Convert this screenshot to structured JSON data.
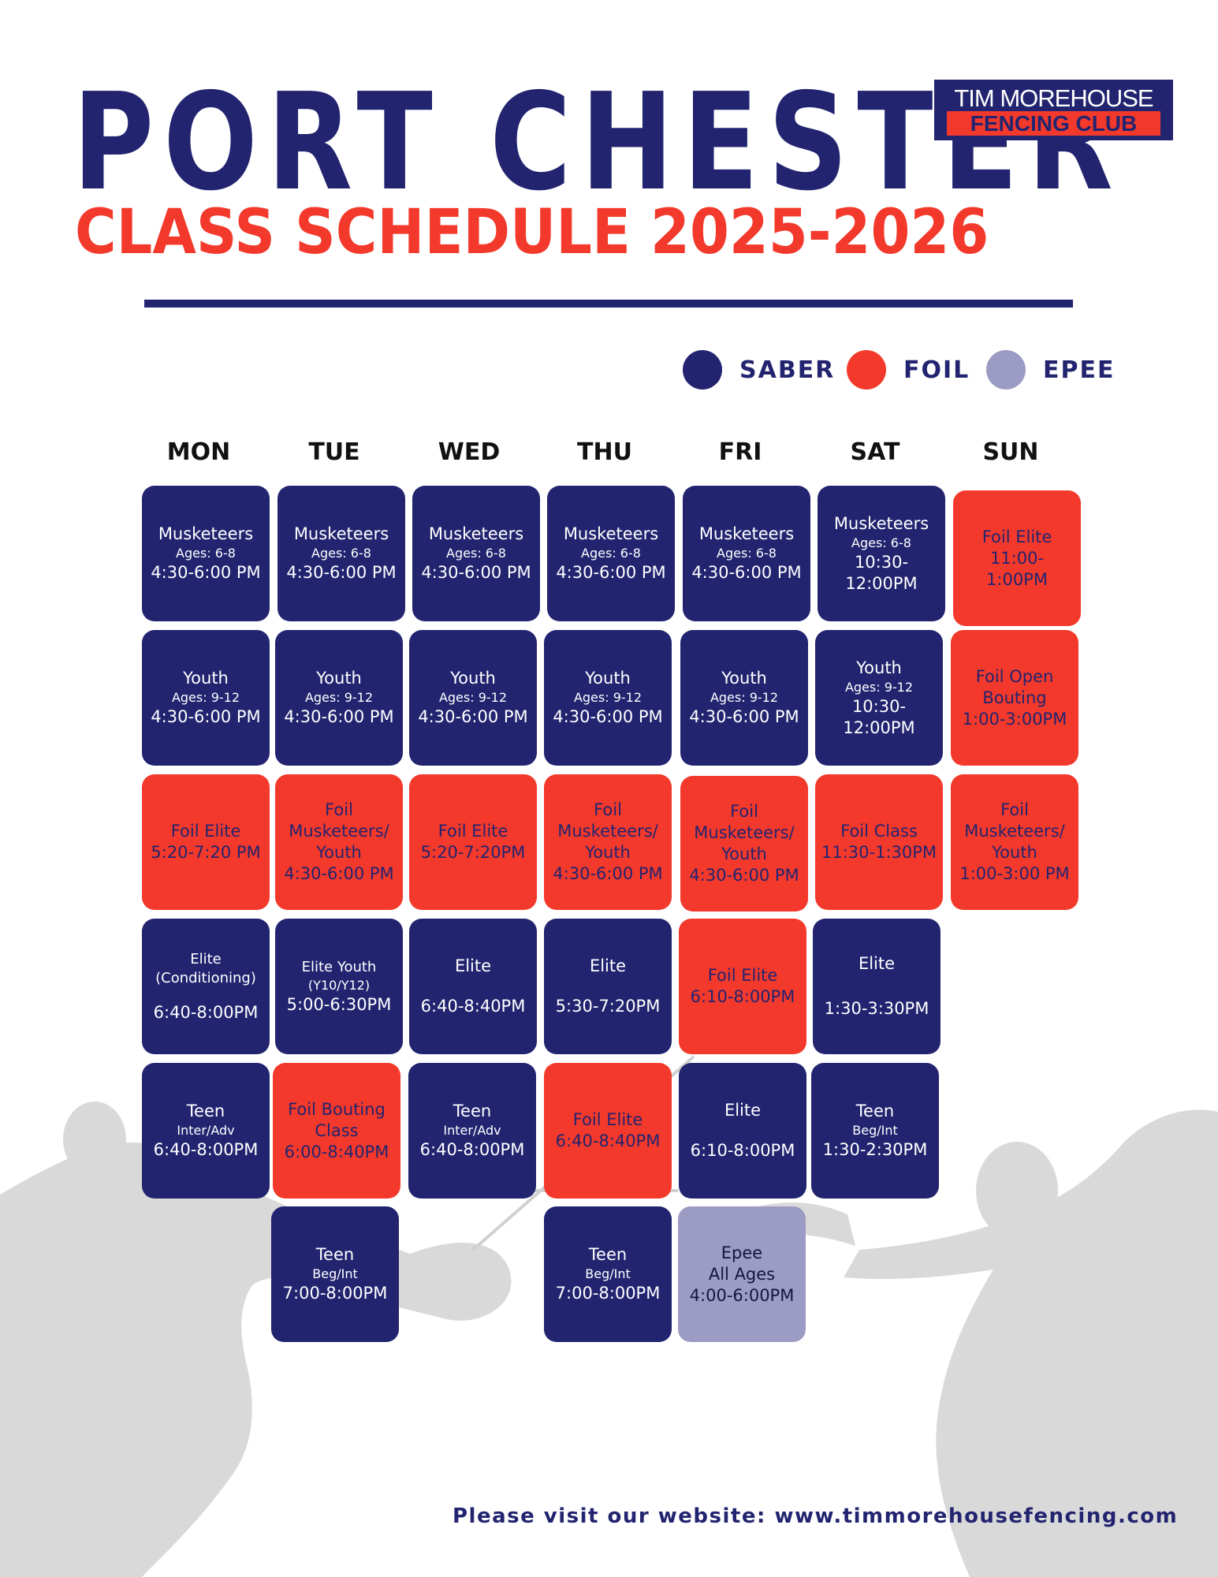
{
  "header": {
    "title": "PORT CHESTER",
    "subtitle": "CLASS SCHEDULE 2025-2026"
  },
  "logo": {
    "line1": "TIM MOREHOUSE",
    "line2": "FENCING CLUB"
  },
  "legend": [
    {
      "label": "SABER",
      "color": "#222470"
    },
    {
      "label": "FOIL",
      "color": "#f3392b"
    },
    {
      "label": "EPEE",
      "color": "#9b9bc4"
    }
  ],
  "days": [
    "MON",
    "TUE",
    "WED",
    "THU",
    "FRI",
    "SAT",
    "SUN"
  ],
  "classes": {
    "mon": [
      {
        "type": "saber",
        "title": "Musketeers",
        "sub": "Ages: 6-8",
        "time": "4:30-6:00 PM"
      },
      {
        "type": "saber",
        "title": "Youth",
        "sub": "Ages: 9-12",
        "time": "4:30-6:00 PM"
      },
      {
        "type": "foil",
        "title": "Foil Elite",
        "time": "5:20-7:20 PM"
      },
      {
        "type": "saber",
        "title": "Elite",
        "sub": "(Conditioning)",
        "time": "6:40-8:00PM"
      },
      {
        "type": "saber",
        "title": "Teen",
        "sub": "Inter/Adv",
        "time": "6:40-8:00PM"
      }
    ],
    "tue": [
      {
        "type": "saber",
        "title": "Musketeers",
        "sub": "Ages: 6-8",
        "time": "4:30-6:00 PM"
      },
      {
        "type": "saber",
        "title": "Youth",
        "sub": "Ages: 9-12",
        "time": "4:30-6:00 PM"
      },
      {
        "type": "foil",
        "title": "Foil",
        "title2": "Musketeers/",
        "title3": "Youth",
        "time": "4:30-6:00 PM"
      },
      {
        "type": "saber",
        "title": "Elite Youth",
        "sub": "(Y10/Y12)",
        "time": "5:00-6:30PM"
      },
      {
        "type": "foil",
        "title": "Foil Bouting",
        "title2": "Class",
        "time": "6:00-8:40PM"
      },
      {
        "type": "saber",
        "title": "Teen",
        "sub": "Beg/Int",
        "time": "7:00-8:00PM"
      }
    ],
    "wed": [
      {
        "type": "saber",
        "title": "Musketeers",
        "sub": "Ages: 6-8",
        "time": "4:30-6:00 PM"
      },
      {
        "type": "saber",
        "title": "Youth",
        "sub": "Ages: 9-12",
        "time": "4:30-6:00 PM"
      },
      {
        "type": "foil",
        "title": "Foil Elite",
        "time": "5:20-7:20PM"
      },
      {
        "type": "saber",
        "title": "Elite",
        "time": "6:40-8:40PM"
      },
      {
        "type": "saber",
        "title": "Teen",
        "sub": "Inter/Adv",
        "time": "6:40-8:00PM"
      }
    ],
    "thu": [
      {
        "type": "saber",
        "title": "Musketeers",
        "sub": "Ages: 6-8",
        "time": "4:30-6:00 PM"
      },
      {
        "type": "saber",
        "title": "Youth",
        "sub": "Ages: 9-12",
        "time": "4:30-6:00 PM"
      },
      {
        "type": "foil",
        "title": "Foil",
        "title2": "Musketeers/",
        "title3": "Youth",
        "time": "4:30-6:00 PM"
      },
      {
        "type": "saber",
        "title": "Elite",
        "time": "5:30-7:20PM"
      },
      {
        "type": "foil",
        "title": "Foil Elite",
        "time": "6:40-8:40PM"
      },
      {
        "type": "saber",
        "title": "Teen",
        "sub": "Beg/Int",
        "time": "7:00-8:00PM"
      }
    ],
    "fri": [
      {
        "type": "saber",
        "title": "Musketeers",
        "sub": "Ages: 6-8",
        "time": "4:30-6:00 PM"
      },
      {
        "type": "saber",
        "title": "Youth",
        "sub": "Ages: 9-12",
        "time": "4:30-6:00 PM"
      },
      {
        "type": "foil",
        "title": "Foil",
        "title2": "Musketeers/",
        "title3": "Youth",
        "time": "4:30-6:00 PM"
      },
      {
        "type": "foil",
        "title": "Foil Elite",
        "time": "6:10-8:00PM"
      },
      {
        "type": "saber",
        "title": "Elite",
        "time": "6:10-8:00PM"
      },
      {
        "type": "epee",
        "title": "Epee",
        "title2": "All Ages",
        "time": "4:00-6:00PM"
      }
    ],
    "sat": [
      {
        "type": "saber",
        "title": "Musketeers",
        "sub": "Ages: 6-8",
        "time": "10:30-",
        "time2": "12:00PM"
      },
      {
        "type": "saber",
        "title": "Youth",
        "sub": "Ages: 9-12",
        "time": "10:30-",
        "time2": "12:00PM"
      },
      {
        "type": "foil",
        "title": "Foil Class",
        "time": "11:30-1:30PM"
      },
      {
        "type": "saber",
        "title": "Elite",
        "time": "1:30-3:30PM"
      },
      {
        "type": "saber",
        "title": "Teen",
        "sub": "Beg/Int",
        "time": "1:30-2:30PM"
      }
    ],
    "sun": [
      {
        "type": "foil",
        "title": "Foil Elite",
        "time": "11:00-",
        "time2": "1:00PM"
      },
      {
        "type": "foil",
        "title": "Foil Open",
        "title2": "Bouting",
        "time": "1:00-3:00PM"
      },
      {
        "type": "foil",
        "title": "Foil",
        "title2": "Musketeers/",
        "title3": "Youth",
        "time": "1:00-3:00 PM"
      }
    ]
  },
  "footer": "Please visit our website: www.timmorehousefencing.com"
}
